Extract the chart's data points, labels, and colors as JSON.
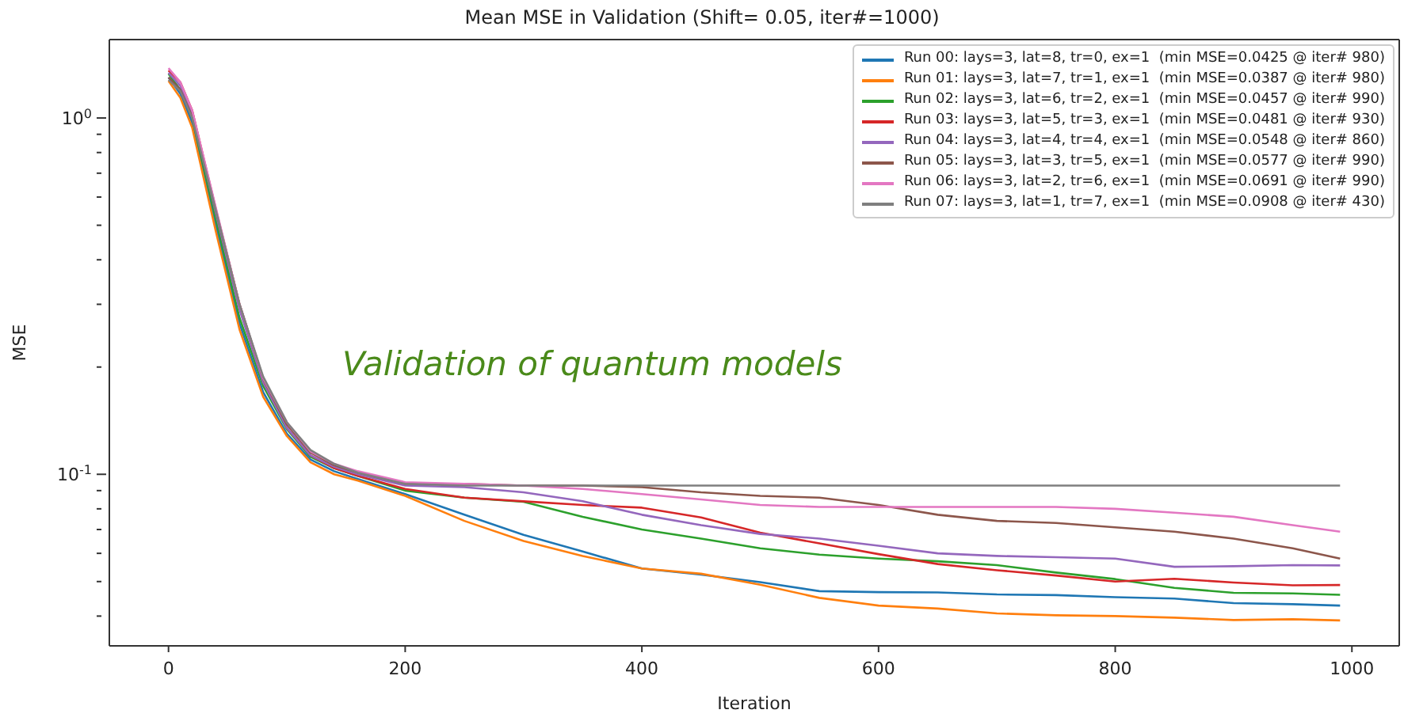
{
  "chart_data": {
    "type": "line",
    "title": "Mean MSE in Validation (Shift= 0.05, iter#=1000)",
    "xlabel": "Iteration",
    "ylabel": "MSE",
    "annotations": [
      "Validation of quantum models"
    ],
    "x": [
      0,
      10,
      20,
      40,
      60,
      80,
      100,
      120,
      140,
      160,
      200,
      250,
      300,
      350,
      400,
      450,
      500,
      550,
      600,
      650,
      700,
      750,
      800,
      850,
      900,
      950,
      990
    ],
    "series": [
      {
        "name": "Run 00: lays=3, lat=8, tr=0, ex=1  (min MSE=0.0425 @ iter# 980)",
        "color": "#1f77b4",
        "values": [
          1.3,
          1.17,
          0.97,
          0.5,
          0.265,
          0.17,
          0.13,
          0.11,
          0.102,
          0.097,
          0.088,
          0.077,
          0.0676,
          0.0607,
          0.0544,
          0.0523,
          0.0498,
          0.047,
          0.0467,
          0.0466,
          0.046,
          0.0458,
          0.0452,
          0.0448,
          0.0435,
          0.0432,
          0.0428
        ]
      },
      {
        "name": "Run 01: lays=3, lat=7, tr=1, ex=1  (min MSE=0.0387 @ iter# 980)",
        "color": "#ff7f0e",
        "values": [
          1.27,
          1.14,
          0.94,
          0.48,
          0.255,
          0.165,
          0.128,
          0.108,
          0.1,
          0.096,
          0.087,
          0.074,
          0.065,
          0.059,
          0.0544,
          0.0526,
          0.049,
          0.045,
          0.0428,
          0.042,
          0.0407,
          0.0402,
          0.04,
          0.0396,
          0.039,
          0.0392,
          0.0389
        ]
      },
      {
        "name": "Run 02: lays=3, lat=6, tr=2, ex=1  (min MSE=0.0457 @ iter# 990)",
        "color": "#2ca02c",
        "values": [
          1.33,
          1.2,
          1.0,
          0.52,
          0.275,
          0.177,
          0.134,
          0.112,
          0.104,
          0.099,
          0.09,
          0.086,
          0.0837,
          0.076,
          0.07,
          0.066,
          0.062,
          0.0595,
          0.058,
          0.057,
          0.0556,
          0.053,
          0.0508,
          0.048,
          0.0465,
          0.0463,
          0.0459
        ]
      },
      {
        "name": "Run 03: lays=3, lat=5, tr=3, ex=1  (min MSE=0.0481 @ iter# 930)",
        "color": "#d62728",
        "values": [
          1.36,
          1.26,
          1.05,
          0.555,
          0.3,
          0.185,
          0.135,
          0.113,
          0.104,
          0.099,
          0.091,
          0.086,
          0.084,
          0.082,
          0.0806,
          0.0757,
          0.0686,
          0.064,
          0.0597,
          0.056,
          0.0538,
          0.052,
          0.05,
          0.0509,
          0.0497,
          0.0488,
          0.0489
        ]
      },
      {
        "name": "Run 04: lays=3, lat=4, tr=4, ex=1  (min MSE=0.0548 @ iter# 860)",
        "color": "#9467bd",
        "values": [
          1.34,
          1.23,
          1.03,
          0.54,
          0.29,
          0.181,
          0.135,
          0.113,
          0.105,
          0.1,
          0.093,
          0.092,
          0.089,
          0.084,
          0.077,
          0.072,
          0.068,
          0.066,
          0.063,
          0.06,
          0.059,
          0.0585,
          0.058,
          0.055,
          0.0552,
          0.0556,
          0.0555
        ]
      },
      {
        "name": "Run 05: lays=3, lat=3, tr=5, ex=1  (min MSE=0.0577 @ iter# 990)",
        "color": "#8c564b",
        "values": [
          1.3,
          1.2,
          1.01,
          0.55,
          0.3,
          0.185,
          0.138,
          0.115,
          0.106,
          0.101,
          0.094,
          0.094,
          0.093,
          0.093,
          0.092,
          0.089,
          0.087,
          0.086,
          0.082,
          0.077,
          0.074,
          0.073,
          0.071,
          0.069,
          0.066,
          0.062,
          0.058
        ]
      },
      {
        "name": "Run 06: lays=3, lat=2, tr=6, ex=1  (min MSE=0.0691 @ iter# 990)",
        "color": "#e377c2",
        "values": [
          1.38,
          1.26,
          1.05,
          0.56,
          0.3,
          0.186,
          0.14,
          0.116,
          0.107,
          0.102,
          0.095,
          0.094,
          0.093,
          0.091,
          0.088,
          0.085,
          0.082,
          0.081,
          0.081,
          0.081,
          0.081,
          0.081,
          0.08,
          0.078,
          0.076,
          0.072,
          0.069
        ]
      },
      {
        "name": "Run 07: lays=3, lat=1, tr=7, ex=1  (min MSE=0.0908 @ iter# 430)",
        "color": "#7f7f7f",
        "values": [
          1.28,
          1.19,
          1.0,
          0.55,
          0.3,
          0.188,
          0.14,
          0.117,
          0.107,
          0.101,
          0.094,
          0.093,
          0.093,
          0.093,
          0.093,
          0.093,
          0.093,
          0.093,
          0.093,
          0.093,
          0.093,
          0.093,
          0.093,
          0.093,
          0.093,
          0.093,
          0.093
        ]
      }
    ],
    "xlim": [
      -50,
      1040
    ],
    "xticks": [
      0,
      200,
      400,
      600,
      800,
      1000
    ],
    "ylim": [
      0.033,
      1.66
    ],
    "yticks": [
      {
        "value": 0.1,
        "label": "10$^{-1}$"
      },
      {
        "value": 1,
        "label": "10$^{0}$"
      },
      {
        "value": 0.04,
        "label": null
      },
      {
        "value": 0.05,
        "label": null
      },
      {
        "value": 0.06,
        "label": null
      },
      {
        "value": 0.07,
        "label": null
      },
      {
        "value": 0.08,
        "label": null
      },
      {
        "value": 0.09,
        "label": null
      },
      {
        "value": 0.2,
        "label": null
      },
      {
        "value": 0.3,
        "label": null
      },
      {
        "value": 0.4,
        "label": null
      },
      {
        "value": 0.5,
        "label": null
      },
      {
        "value": 0.6,
        "label": null
      },
      {
        "value": 0.7,
        "label": null
      },
      {
        "value": 0.8,
        "label": null
      },
      {
        "value": 0.9,
        "label": null
      }
    ],
    "log": true,
    "grid": false,
    "legend": "top right",
    "marker": "none",
    "line_style": "solid"
  }
}
